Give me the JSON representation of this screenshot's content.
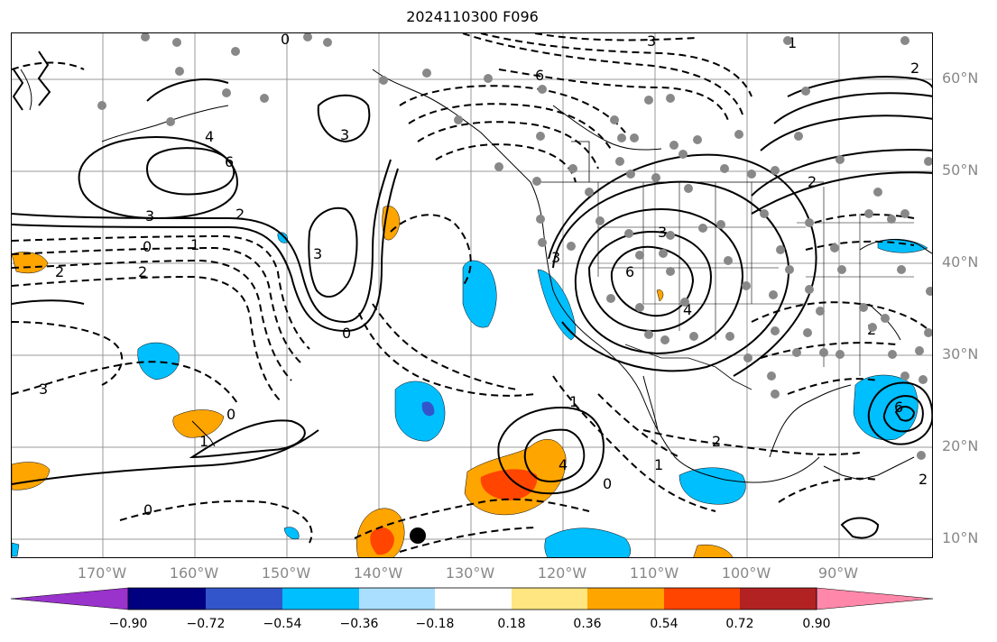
{
  "title": "2024110300 F096",
  "latitude_labels": [
    "60°N",
    "50°N",
    "40°N",
    "30°N",
    "20°N",
    "10°N"
  ],
  "longitude_labels": [
    "170°W",
    "160°W",
    "150°W",
    "140°W",
    "130°W",
    "120°W",
    "110°W",
    "100°W",
    "90°W"
  ],
  "colorbar": {
    "tick_labels": [
      "−0.90",
      "−0.72",
      "−0.54",
      "−0.36",
      "−0.18",
      "0.18",
      "0.36",
      "0.54",
      "0.72",
      "0.90"
    ],
    "colors": [
      "#9933cc",
      "#000080",
      "#3355cc",
      "#00bfff",
      "#aadfff",
      "#ffffff",
      "#ffe680",
      "#ffa500",
      "#ff4500",
      "#b22222",
      "#ff88aa"
    ]
  },
  "contour_labels": [
    "6",
    "3",
    "4",
    "6",
    "3",
    "2",
    "0",
    "1",
    "2",
    "3",
    "3",
    "0",
    "0",
    "1",
    "2",
    "6",
    "4",
    "3",
    "3",
    "1",
    "2",
    "0",
    "1",
    "3",
    "4",
    "2",
    "6",
    "0",
    "2",
    "1",
    "2",
    "0",
    "2"
  ],
  "colors": {
    "positive_fill": "#ffa500",
    "strong_positive_fill": "#ff4500",
    "negative_fill": "#00bfff",
    "station_dot": "#888888"
  }
}
